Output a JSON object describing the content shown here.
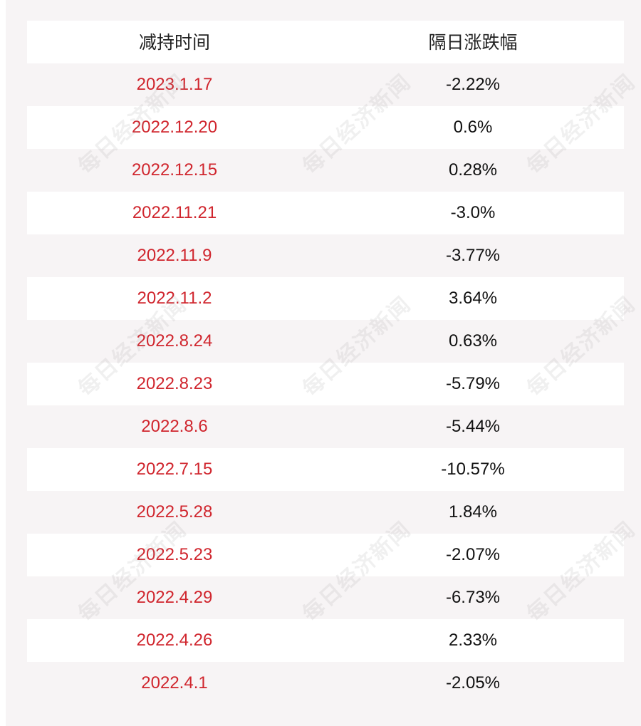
{
  "table": {
    "headers": {
      "date": "减持时间",
      "change": "隔日涨跌幅"
    },
    "rows": [
      {
        "date": "2023.1.17",
        "change": "-2.22%"
      },
      {
        "date": "2022.12.20",
        "change": "0.6%"
      },
      {
        "date": "2022.12.15",
        "change": "0.28%"
      },
      {
        "date": "2022.11.21",
        "change": "-3.0%"
      },
      {
        "date": "2022.11.9",
        "change": "-3.77%"
      },
      {
        "date": "2022.11.2",
        "change": "3.64%"
      },
      {
        "date": "2022.8.24",
        "change": "0.63%"
      },
      {
        "date": "2022.8.23",
        "change": "-5.79%"
      },
      {
        "date": "2022.8.6",
        "change": "-5.44%"
      },
      {
        "date": "2022.7.15",
        "change": "-10.57%"
      },
      {
        "date": "2022.5.28",
        "change": "1.84%"
      },
      {
        "date": "2022.5.23",
        "change": "-2.07%"
      },
      {
        "date": "2022.4.29",
        "change": "-6.73%"
      },
      {
        "date": "2022.4.26",
        "change": "2.33%"
      },
      {
        "date": "2022.4.1",
        "change": "-2.05%"
      }
    ]
  },
  "watermark": {
    "text": "每日经济新闻"
  },
  "colors": {
    "date_text": "#d0262e",
    "change_text": "#111111",
    "background": "#f7f4f5",
    "row_alt": "#ffffff"
  }
}
